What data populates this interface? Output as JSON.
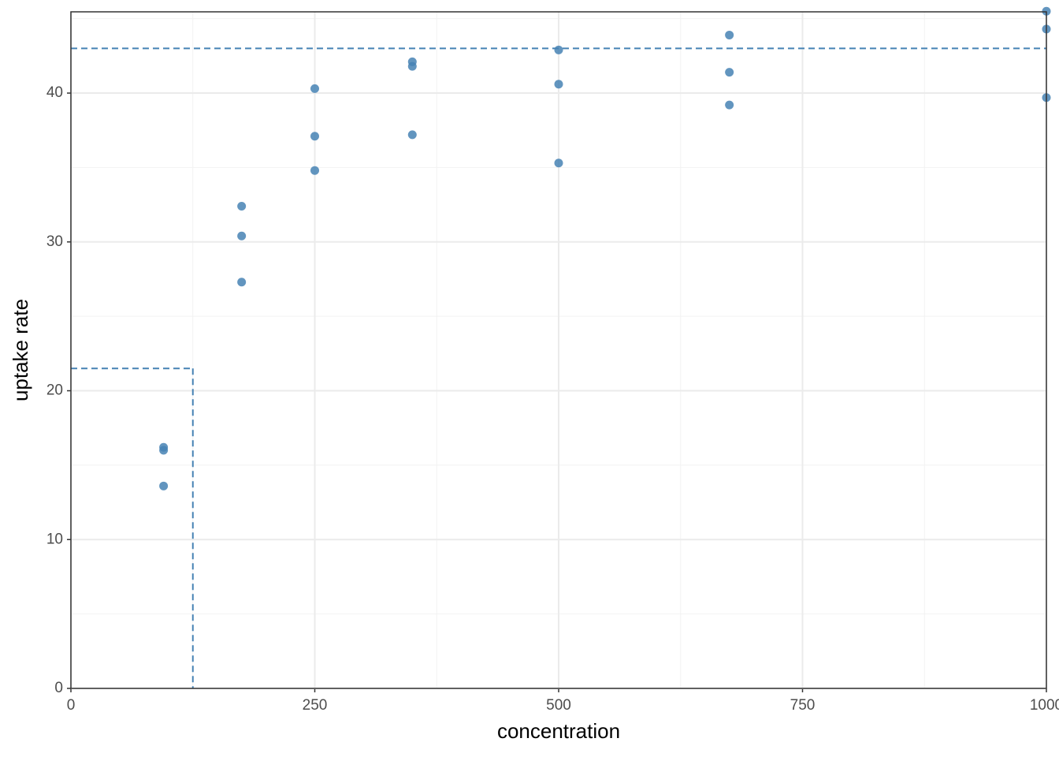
{
  "chart_data": {
    "type": "scatter",
    "x_label": "concentration",
    "y_label": "uptake rate",
    "x": [
      95,
      95,
      95,
      175,
      175,
      175,
      250,
      250,
      250,
      350,
      350,
      350,
      500,
      500,
      500,
      675,
      675,
      675,
      1000,
      1000,
      1000
    ],
    "y": [
      16.2,
      16.0,
      13.6,
      32.4,
      30.4,
      27.3,
      40.3,
      37.1,
      34.8,
      42.1,
      41.8,
      37.2,
      42.9,
      40.6,
      35.3,
      43.9,
      41.4,
      39.2,
      45.5,
      44.3,
      39.7
    ],
    "color": "#4682b4",
    "xlim": [
      0,
      1000
    ],
    "ylim": [
      0,
      45.46
    ],
    "xticks": [
      0,
      250,
      500,
      750,
      1000
    ],
    "yticks": [
      0,
      10,
      20,
      30,
      40
    ],
    "grid": true,
    "minor_grid": true,
    "reference_lines": [
      {
        "y": 43.0
      },
      {
        "x": 125,
        "y": 21.5
      }
    ]
  }
}
